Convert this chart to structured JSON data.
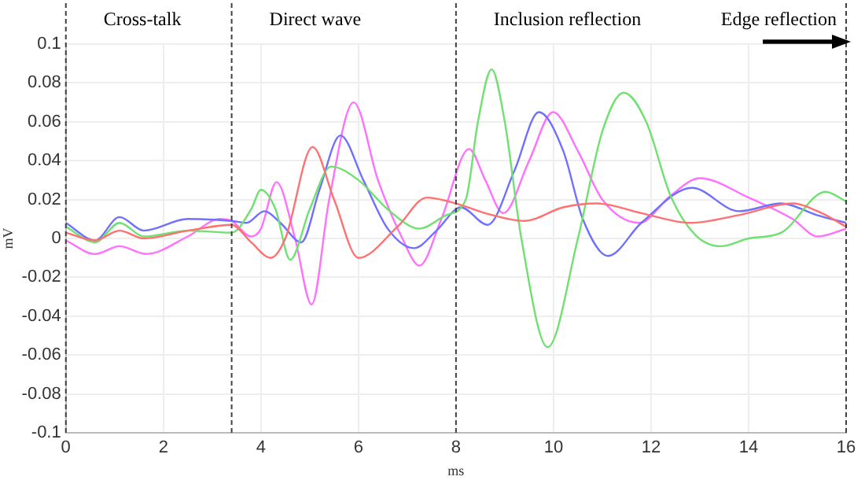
{
  "chart_data": {
    "type": "line",
    "xlabel": "ms",
    "ylabel": "mV",
    "xlim": [
      0,
      16
    ],
    "xticks": [
      0,
      2,
      4,
      6,
      8,
      10,
      12,
      14,
      16
    ],
    "ylim": [
      -0.1,
      0.1
    ],
    "yticks": [
      -0.1,
      -0.08,
      -0.06,
      -0.04,
      -0.02,
      0,
      0.02,
      0.04,
      0.06,
      0.08,
      0.1
    ],
    "grid": true,
    "legend": false,
    "marker": "none",
    "line_style": "solid",
    "ref_lines": [
      {
        "axis": "x",
        "value": 0,
        "label": "Cross-talk",
        "color": "#404040",
        "line_style": "dashed"
      },
      {
        "axis": "x",
        "value": 3.4,
        "label": "Direct wave",
        "color": "#404040",
        "line_style": "dashed"
      },
      {
        "axis": "x",
        "value": 8,
        "label": "Inclusion reflection",
        "color": "#404040",
        "line_style": "dashed"
      },
      {
        "axis": "x",
        "value": 16,
        "label": "Edge reflection",
        "color": "#404040",
        "line_style": "dashed"
      }
    ],
    "series": [
      {
        "color": "#ff7070",
        "x": [
          0,
          0.6,
          1.1,
          1.6,
          2.5,
          3.4,
          3.8,
          4.2,
          4.5,
          5.06,
          5.5,
          6.0,
          6.8,
          7.4,
          8.0,
          8.6,
          9.4,
          10.2,
          10.9,
          11.8,
          12.8,
          13.8,
          14.9,
          15.5,
          16
        ],
        "values": [
          0.003,
          -0.001,
          0.004,
          0.0,
          0.004,
          0.007,
          -0.002,
          -0.01,
          0.0,
          0.047,
          0.02,
          -0.01,
          0.006,
          0.021,
          0.018,
          0.013,
          0.009,
          0.016,
          0.018,
          0.013,
          0.008,
          0.012,
          0.018,
          0.013,
          0.006
        ]
      },
      {
        "color": "#70e070",
        "x": [
          0,
          0.6,
          1.1,
          1.6,
          2.5,
          3.4,
          3.8,
          4.0,
          4.3,
          4.6,
          5.0,
          5.44,
          6.0,
          6.6,
          7.25,
          7.8,
          8.2,
          8.45,
          8.73,
          9.0,
          9.34,
          9.88,
          10.5,
          11.0,
          11.44,
          11.9,
          12.4,
          12.9,
          13.43,
          14.0,
          14.67,
          15.58,
          16
        ],
        "values": [
          0.006,
          -0.002,
          0.008,
          0.001,
          0.004,
          0.003,
          0.015,
          0.025,
          0.015,
          -0.011,
          0.015,
          0.037,
          0.03,
          0.015,
          0.005,
          0.012,
          0.02,
          0.06,
          0.087,
          0.06,
          0.0,
          -0.056,
          0.0,
          0.055,
          0.075,
          0.06,
          0.022,
          0.002,
          -0.004,
          0.0,
          0.003,
          0.024,
          0.019
        ]
      },
      {
        "color": "#7070ff",
        "x": [
          0,
          0.6,
          1.1,
          1.6,
          2.5,
          3.4,
          3.7,
          4.07,
          4.4,
          4.83,
          5.2,
          5.63,
          6.1,
          6.6,
          7.14,
          7.6,
          8.1,
          8.65,
          9.2,
          9.7,
          10.2,
          10.6,
          11.12,
          11.8,
          12.84,
          13.8,
          14.67,
          15.4,
          16
        ],
        "values": [
          0.008,
          -0.001,
          0.011,
          0.004,
          0.01,
          0.009,
          0.008,
          0.014,
          0.008,
          -0.002,
          0.025,
          0.053,
          0.03,
          0.005,
          -0.005,
          0.004,
          0.016,
          0.007,
          0.035,
          0.065,
          0.045,
          0.01,
          -0.009,
          0.008,
          0.026,
          0.014,
          0.018,
          0.012,
          0.008
        ]
      },
      {
        "color": "#ff70ff",
        "x": [
          0,
          0.6,
          1.1,
          1.65,
          2.5,
          3.16,
          3.4,
          3.8,
          4.0,
          4.32,
          4.7,
          5.04,
          5.4,
          5.9,
          6.4,
          6.9,
          7.25,
          7.7,
          8.27,
          8.6,
          8.97,
          9.5,
          9.99,
          10.5,
          11.0,
          11.76,
          12.4,
          13.0,
          14.0,
          14.9,
          15.42,
          16
        ],
        "values": [
          -0.001,
          -0.008,
          -0.004,
          -0.008,
          0.001,
          0.01,
          0.009,
          0.001,
          0.005,
          0.029,
          0.0,
          -0.034,
          0.02,
          0.07,
          0.03,
          0.0,
          -0.014,
          0.01,
          0.046,
          0.03,
          0.013,
          0.04,
          0.065,
          0.045,
          0.02,
          0.008,
          0.022,
          0.031,
          0.021,
          0.01,
          0.001,
          0.005
        ]
      }
    ]
  }
}
